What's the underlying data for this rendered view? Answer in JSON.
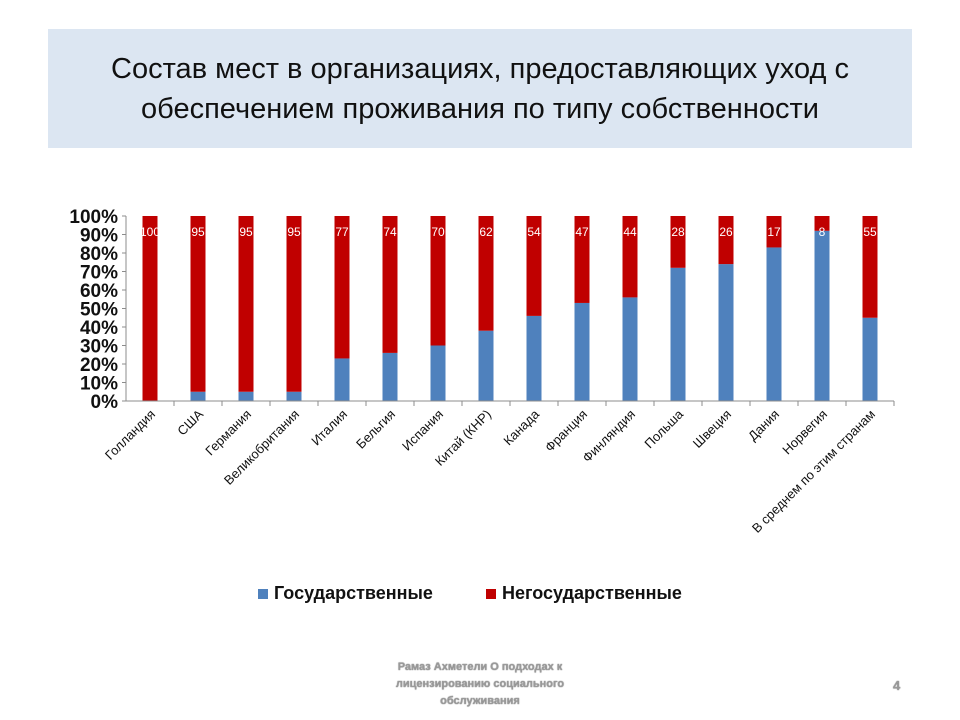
{
  "slide": {
    "title": "Состав мест в организациях, предоставляющих уход с обеспечением проживания по типу собственности",
    "footer": "Рамаз Ахметели О подходах к лицензированию социального обслуживания",
    "page_number": "4"
  },
  "chart_data": {
    "type": "bar",
    "stacked": true,
    "percent_stacked": true,
    "categories": [
      "Голландия",
      "США",
      "Германия",
      "Великобритания",
      "Италия",
      "Бельгия",
      "Испания",
      "Китай (КНР)",
      "Канада",
      "Франция",
      "Финляндия",
      "Польша",
      "Швеция",
      "Дания",
      "Норвегия",
      "В среднем по этим странам"
    ],
    "series": [
      {
        "name": "Государственные",
        "color": "#4f81bd",
        "values": [
          0,
          5,
          5,
          5,
          23,
          26,
          30,
          38,
          46,
          53,
          56,
          72,
          74,
          83,
          92,
          45
        ]
      },
      {
        "name": "Негосударственные",
        "color": "#c00000",
        "values": [
          100,
          95,
          95,
          95,
          77,
          74,
          70,
          62,
          54,
          47,
          44,
          28,
          26,
          17,
          8,
          55
        ]
      }
    ],
    "data_labels": [
      "100",
      "95",
      "95",
      "95",
      "77",
      "74",
      "70",
      "62",
      "54",
      "47",
      "44",
      "28",
      "26",
      "17",
      "8",
      "55"
    ],
    "y_ticks": [
      "0%",
      "10%",
      "20%",
      "30%",
      "40%",
      "50%",
      "60%",
      "70%",
      "80%",
      "90%",
      "100%"
    ],
    "ylim": [
      0,
      100
    ],
    "legend_position": "bottom",
    "grid": false
  }
}
